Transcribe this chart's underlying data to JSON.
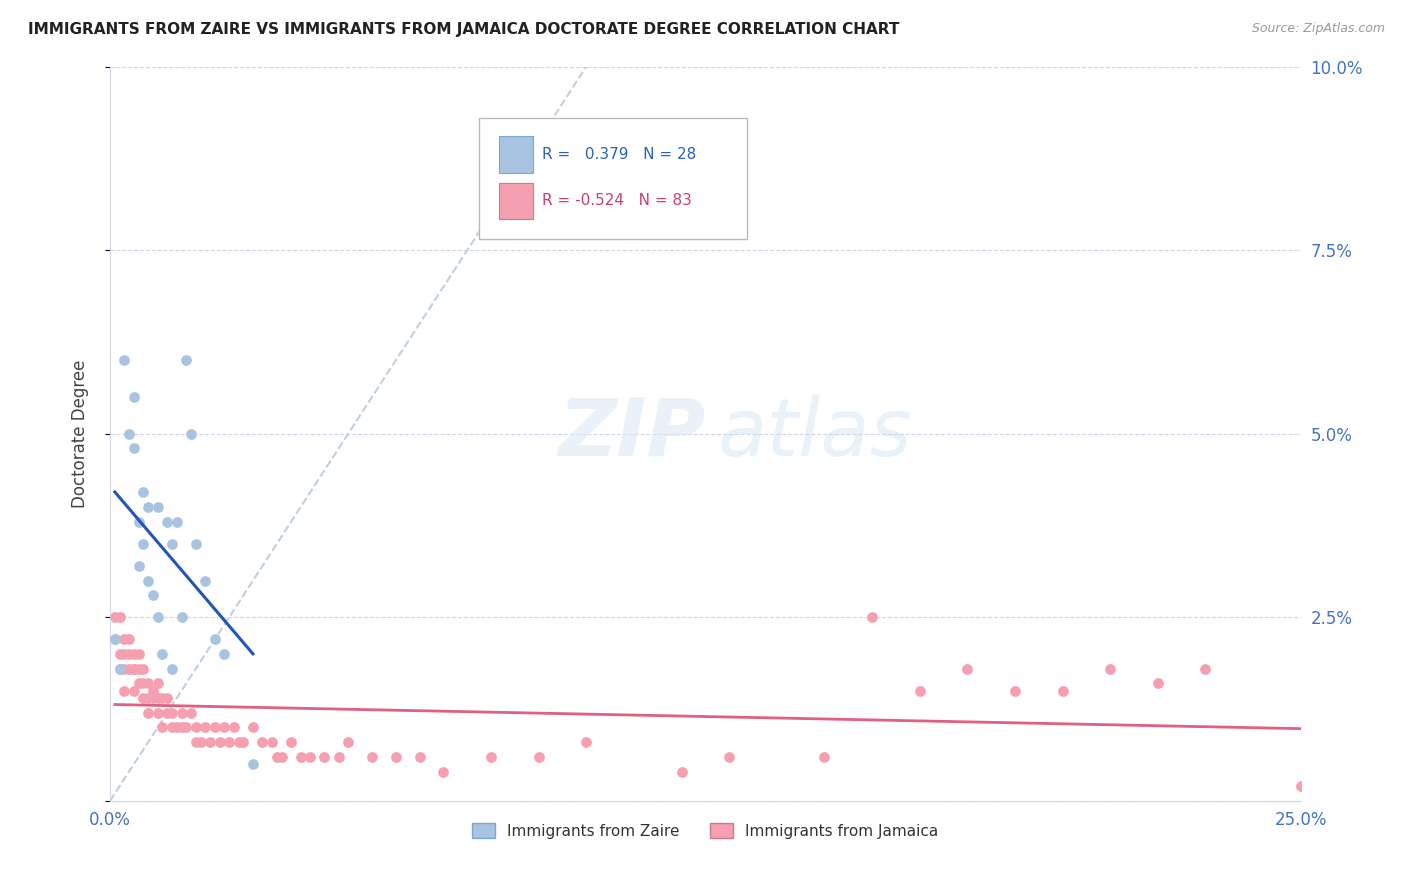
{
  "title": "IMMIGRANTS FROM ZAIRE VS IMMIGRANTS FROM JAMAICA DOCTORATE DEGREE CORRELATION CHART",
  "source": "Source: ZipAtlas.com",
  "ylabel": "Doctorate Degree",
  "yticks": [
    0.0,
    0.025,
    0.05,
    0.075,
    0.1
  ],
  "ytick_labels": [
    "",
    "2.5%",
    "5.0%",
    "7.5%",
    "10.0%"
  ],
  "xlim": [
    0.0,
    0.25
  ],
  "ylim": [
    0.0,
    0.1
  ],
  "zaire_R": 0.379,
  "zaire_N": 28,
  "jamaica_R": -0.524,
  "jamaica_N": 83,
  "zaire_color": "#a8c4e0",
  "jamaica_color": "#f4a0b0",
  "zaire_line_color": "#2255bb",
  "jamaica_line_color": "#e06080",
  "diagonal_color": "#c0cfe0",
  "zaire_x": [
    0.001,
    0.002,
    0.003,
    0.004,
    0.005,
    0.005,
    0.006,
    0.006,
    0.007,
    0.007,
    0.008,
    0.008,
    0.009,
    0.01,
    0.01,
    0.011,
    0.012,
    0.013,
    0.013,
    0.014,
    0.015,
    0.016,
    0.017,
    0.018,
    0.02,
    0.022,
    0.024,
    0.03
  ],
  "zaire_y": [
    0.022,
    0.018,
    0.06,
    0.05,
    0.055,
    0.048,
    0.038,
    0.032,
    0.042,
    0.035,
    0.04,
    0.03,
    0.028,
    0.04,
    0.025,
    0.02,
    0.038,
    0.035,
    0.018,
    0.038,
    0.025,
    0.06,
    0.05,
    0.035,
    0.03,
    0.022,
    0.02,
    0.005
  ],
  "jamaica_x": [
    0.001,
    0.001,
    0.002,
    0.002,
    0.002,
    0.003,
    0.003,
    0.003,
    0.003,
    0.004,
    0.004,
    0.004,
    0.005,
    0.005,
    0.005,
    0.005,
    0.006,
    0.006,
    0.006,
    0.007,
    0.007,
    0.007,
    0.008,
    0.008,
    0.008,
    0.009,
    0.009,
    0.01,
    0.01,
    0.01,
    0.011,
    0.011,
    0.012,
    0.012,
    0.013,
    0.013,
    0.014,
    0.015,
    0.015,
    0.016,
    0.017,
    0.018,
    0.018,
    0.019,
    0.02,
    0.021,
    0.022,
    0.023,
    0.024,
    0.025,
    0.026,
    0.027,
    0.028,
    0.03,
    0.032,
    0.034,
    0.035,
    0.036,
    0.038,
    0.04,
    0.042,
    0.045,
    0.048,
    0.05,
    0.055,
    0.06,
    0.065,
    0.07,
    0.08,
    0.09,
    0.1,
    0.12,
    0.13,
    0.15,
    0.16,
    0.17,
    0.18,
    0.19,
    0.2,
    0.21,
    0.22,
    0.23,
    0.25
  ],
  "jamaica_y": [
    0.025,
    0.022,
    0.02,
    0.018,
    0.025,
    0.022,
    0.02,
    0.018,
    0.015,
    0.018,
    0.02,
    0.022,
    0.018,
    0.015,
    0.02,
    0.018,
    0.016,
    0.02,
    0.018,
    0.016,
    0.018,
    0.014,
    0.014,
    0.016,
    0.012,
    0.015,
    0.014,
    0.012,
    0.016,
    0.014,
    0.01,
    0.014,
    0.012,
    0.014,
    0.012,
    0.01,
    0.01,
    0.012,
    0.01,
    0.01,
    0.012,
    0.008,
    0.01,
    0.008,
    0.01,
    0.008,
    0.01,
    0.008,
    0.01,
    0.008,
    0.01,
    0.008,
    0.008,
    0.01,
    0.008,
    0.008,
    0.006,
    0.006,
    0.008,
    0.006,
    0.006,
    0.006,
    0.006,
    0.008,
    0.006,
    0.006,
    0.006,
    0.004,
    0.006,
    0.006,
    0.008,
    0.004,
    0.006,
    0.006,
    0.025,
    0.015,
    0.018,
    0.015,
    0.015,
    0.018,
    0.016,
    0.018,
    0.002
  ]
}
